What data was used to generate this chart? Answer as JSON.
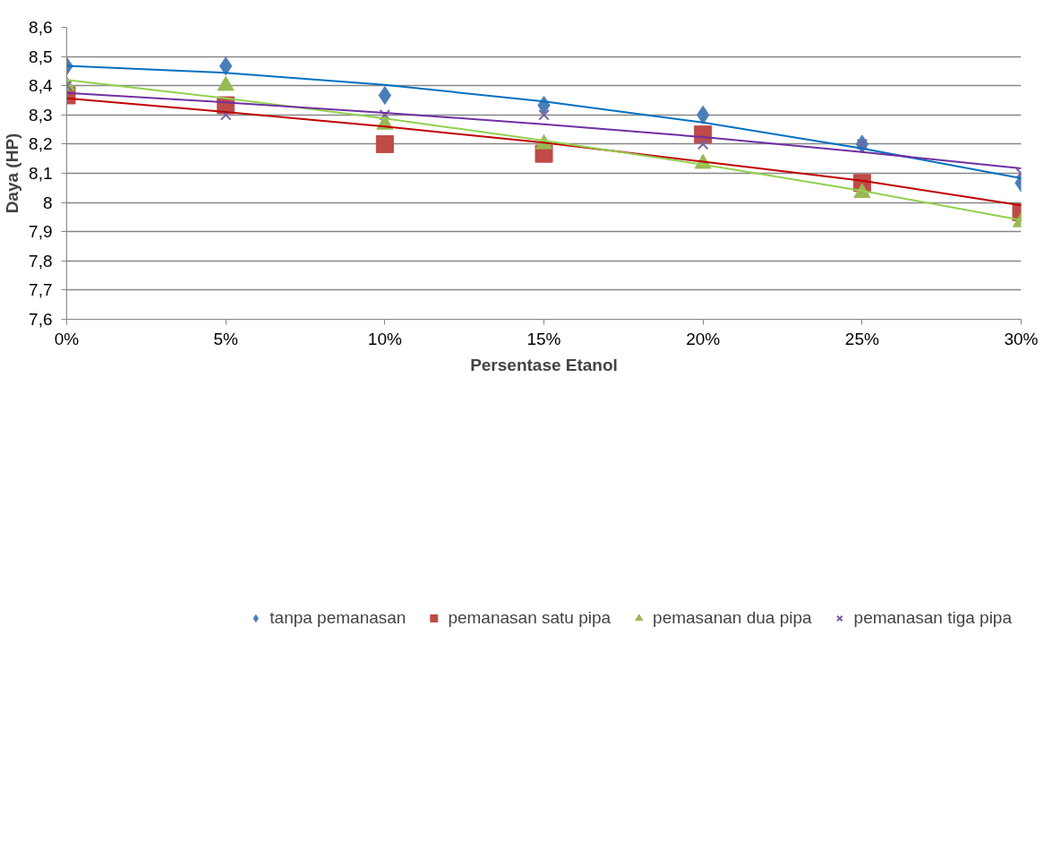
{
  "chart_data": {
    "type": "scatter",
    "xlabel": "Persentase Etanol",
    "ylabel": "Daya (HP)",
    "x": [
      0,
      5,
      10,
      15,
      20,
      25,
      30
    ],
    "series": [
      {
        "name": "tanpa pemanasan",
        "color": "#4a7ebb",
        "marker": "diamond",
        "values": [
          8.467,
          8.467,
          8.367,
          8.333,
          8.3,
          8.2,
          8.067
        ]
      },
      {
        "name": "pemanasan satu pipa",
        "color": "#be4b48",
        "marker": "square",
        "values": [
          8.367,
          8.333,
          8.2,
          8.167,
          8.233,
          8.067,
          7.967
        ]
      },
      {
        "name": "pemasanan dua pipa",
        "color": "#98b954",
        "marker": "triangle",
        "values": [
          8.4,
          8.4,
          8.267,
          8.2,
          8.133,
          8.033,
          7.933
        ]
      },
      {
        "name": "pemanasan tiga pipa",
        "color": "#7d60a0",
        "marker": "cross",
        "values": [
          8.4,
          8.3,
          8.3,
          8.3,
          8.2,
          8.2,
          8.1
        ]
      },
      {
        "type": "line",
        "color": "#0070c0",
        "x": [
          0,
          5,
          10,
          15,
          20,
          25,
          30
        ],
        "values": [
          8.468,
          8.444,
          8.403,
          8.346,
          8.274,
          8.185,
          8.083
        ]
      },
      {
        "type": "line",
        "color": "#c00000",
        "x": [
          0,
          5,
          10,
          15,
          20,
          25,
          30
        ],
        "values": [
          8.357,
          8.31,
          8.26,
          8.205,
          8.14,
          8.075,
          7.99
        ]
      },
      {
        "type": "line",
        "color": "#92d050",
        "x": [
          0,
          5,
          10,
          15,
          20,
          25,
          30
        ],
        "values": [
          8.42,
          8.357,
          8.288,
          8.212,
          8.13,
          8.04,
          7.94
        ]
      },
      {
        "type": "line",
        "color": "#7030a0",
        "x": [
          0,
          5,
          10,
          15,
          20,
          25,
          30
        ],
        "values": [
          8.375,
          8.343,
          8.307,
          8.268,
          8.224,
          8.173,
          8.117
        ]
      }
    ],
    "xlim": [
      0,
      30
    ],
    "xticks": [
      {
        "value": 0,
        "label": "0%"
      },
      {
        "value": 5,
        "label": "5%"
      },
      {
        "value": 10,
        "label": "10%"
      },
      {
        "value": 15,
        "label": "15%"
      },
      {
        "value": 20,
        "label": "20%"
      },
      {
        "value": 25,
        "label": "25%"
      },
      {
        "value": 30,
        "label": "30%"
      }
    ],
    "ylim": [
      7.6,
      8.6
    ],
    "yticks": [
      {
        "value": 7.6,
        "label": "7,6"
      },
      {
        "value": 7.7,
        "label": "7,7"
      },
      {
        "value": 7.8,
        "label": "7,8"
      },
      {
        "value": 7.9,
        "label": "7,9"
      },
      8,
      {
        "value": 8.1,
        "label": "8,1"
      },
      {
        "value": 8.2,
        "label": "8,2"
      },
      {
        "value": 8.3,
        "label": "8,3"
      },
      {
        "value": 8.4,
        "label": "8,4"
      },
      {
        "value": 8.5,
        "label": "8,5"
      },
      {
        "value": 8.6,
        "label": "8,6"
      }
    ],
    "grid": "y",
    "legend": "bottom"
  }
}
